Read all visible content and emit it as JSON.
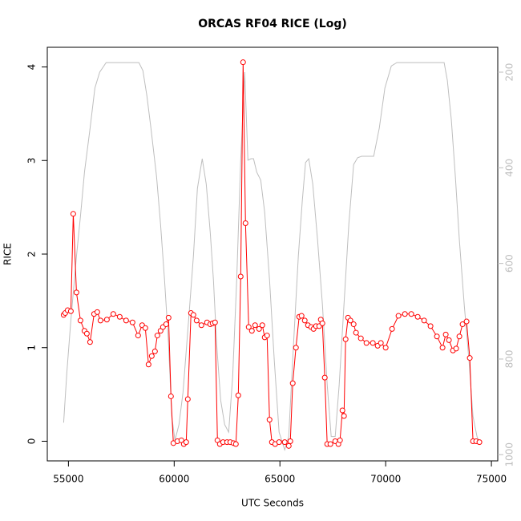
{
  "chart_data": {
    "type": "line",
    "title": "ORCAS RF04 RICE (Log)",
    "x_label": "UTC Seconds",
    "y_label": "RICE",
    "xlim": [
      54000,
      75300
    ],
    "xticks": [
      55000,
      60000,
      65000,
      70000,
      75000
    ],
    "ylim": [
      -0.21,
      4.21
    ],
    "yticks": [
      0,
      1,
      2,
      3,
      4
    ],
    "y2lim": [
      1013,
      148
    ],
    "y2ticks": [
      200,
      400,
      600,
      800,
      1000
    ],
    "series": [
      {
        "color": "#ff0000",
        "marker": "circle",
        "x": [
          54773,
          54848,
          54962,
          55114,
          55227,
          55379,
          55568,
          55758,
          55871,
          56023,
          56212,
          56364,
          56515,
          56818,
          57121,
          57424,
          57727,
          58030,
          58295,
          58485,
          58636,
          58788,
          58939,
          59091,
          59205,
          59356,
          59470,
          59621,
          59735,
          59848,
          59962,
          60152,
          60341,
          60455,
          60568,
          60644,
          60795,
          60909,
          61061,
          61288,
          61553,
          61705,
          61818,
          61932,
          62045,
          62159,
          62311,
          62500,
          62652,
          62803,
          62917,
          63030,
          63144,
          63258,
          63371,
          63523,
          63674,
          63826,
          64015,
          64167,
          64280,
          64394,
          64508,
          64621,
          64773,
          64962,
          65227,
          65417,
          65492,
          65606,
          65758,
          65909,
          66023,
          66174,
          66326,
          66477,
          66591,
          66705,
          66856,
          66932,
          67008,
          67121,
          67235,
          67386,
          67614,
          67765,
          67841,
          67955,
          68030,
          68106,
          68220,
          68333,
          68485,
          68598,
          68826,
          69091,
          69394,
          69621,
          69773,
          70000,
          70303,
          70606,
          70909,
          71212,
          71515,
          71818,
          72121,
          72424,
          72689,
          72841,
          72992,
          73182,
          73333,
          73485,
          73636,
          73826,
          73977,
          74129,
          74280,
          74432
        ],
        "values": [
          1.35,
          1.37,
          1.4,
          1.39,
          2.43,
          1.59,
          1.29,
          1.18,
          1.15,
          1.06,
          1.36,
          1.38,
          1.29,
          1.3,
          1.36,
          1.33,
          1.29,
          1.27,
          1.13,
          1.24,
          1.21,
          0.82,
          0.91,
          0.96,
          1.13,
          1.18,
          1.22,
          1.25,
          1.32,
          0.48,
          -0.02,
          0,
          0.01,
          -0.03,
          -0.01,
          0.45,
          1.37,
          1.35,
          1.29,
          1.24,
          1.27,
          1.25,
          1.26,
          1.27,
          0.01,
          -0.03,
          -0.01,
          -0.01,
          -0.01,
          -0.02,
          -0.03,
          0.49,
          1.76,
          4.05,
          2.33,
          1.22,
          1.18,
          1.24,
          1.2,
          1.24,
          1.11,
          1.13,
          0.23,
          -0.01,
          -0.03,
          -0.01,
          -0.01,
          -0.05,
          0,
          0.62,
          1,
          1.33,
          1.34,
          1.29,
          1.24,
          1.22,
          1.2,
          1.23,
          1.23,
          1.3,
          1.26,
          0.68,
          -0.03,
          -0.03,
          0,
          -0.03,
          0.01,
          0.33,
          0.27,
          1.09,
          1.32,
          1.29,
          1.25,
          1.16,
          1.1,
          1.05,
          1.05,
          1.02,
          1.05,
          1,
          1.2,
          1.34,
          1.36,
          1.36,
          1.33,
          1.29,
          1.23,
          1.12,
          1,
          1.14,
          1.08,
          0.97,
          0.99,
          1.12,
          1.25,
          1.28,
          0.89,
          0,
          0,
          -0.01
        ]
      },
      {
        "color": "#bebebe",
        "axis": "y2",
        "x": [
          54773,
          54924,
          55114,
          55379,
          55568,
          55758,
          56023,
          56250,
          56477,
          56780,
          57083,
          57462,
          58030,
          58333,
          58523,
          58712,
          58902,
          59167,
          59356,
          59545,
          59735,
          59886,
          60038,
          60227,
          60417,
          60682,
          60909,
          61098,
          61326,
          61515,
          61705,
          61856,
          62008,
          62197,
          62386,
          62576,
          62765,
          62955,
          63144,
          63333,
          63485,
          63636,
          63750,
          63902,
          64091,
          64280,
          64508,
          64735,
          64962,
          65227,
          65417,
          65644,
          65871,
          66061,
          66212,
          66364,
          66553,
          66780,
          67008,
          67235,
          67424,
          67614,
          67803,
          68030,
          68258,
          68485,
          68674,
          68864,
          69129,
          69432,
          69697,
          69962,
          70265,
          70530,
          71098,
          72235,
          72765,
          72917,
          73106,
          73295,
          73485,
          73712,
          73939,
          74129,
          74318,
          74394
        ],
        "values": [
          933,
          828,
          719,
          585,
          501,
          409,
          317,
          233,
          200,
          180,
          180,
          180,
          180,
          180,
          197,
          250,
          317,
          418,
          518,
          635,
          769,
          920,
          970,
          937,
          870,
          719,
          585,
          443,
          381,
          434,
          535,
          635,
          769,
          886,
          937,
          953,
          836,
          635,
          384,
          200,
          384,
          381,
          381,
          409,
          426,
          493,
          635,
          803,
          953,
          990,
          962,
          769,
          585,
          468,
          389,
          381,
          434,
          551,
          685,
          853,
          962,
          962,
          853,
          685,
          518,
          393,
          379,
          376,
          376,
          376,
          317,
          233,
          187,
          180,
          180,
          180,
          180,
          217,
          300,
          418,
          551,
          685,
          803,
          920,
          962,
          970
        ]
      }
    ]
  }
}
